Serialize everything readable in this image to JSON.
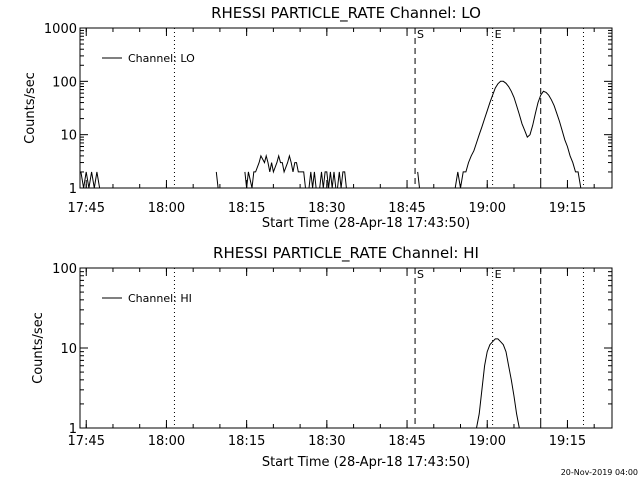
{
  "chart_data": [
    {
      "type": "line",
      "title": "RHESSI PARTICLE_RATE Channel: LO",
      "xlabel": "Start Time (28-Apr-18 17:43:50)",
      "ylabel": "Counts/sec",
      "yscale": "log",
      "ylim": [
        1,
        1000
      ],
      "x_ticks": [
        "17:45",
        "18:00",
        "18:15",
        "18:30",
        "18:45",
        "19:00",
        "19:15"
      ],
      "y_ticks": [
        "1",
        "10",
        "100",
        "1000"
      ],
      "legend": {
        "label": "Channel: LO",
        "position": "top-left"
      },
      "markers": [
        {
          "time": "18:46:30",
          "label": "S",
          "style": "dashed"
        },
        {
          "time": "19:01:00",
          "label": "E",
          "style": "dotted"
        },
        {
          "time": "19:10:00",
          "label": "",
          "style": "dashed"
        },
        {
          "time": "18:01:30",
          "label": "",
          "style": "dotted"
        },
        {
          "time": "19:18:00",
          "label": "",
          "style": "dotted"
        }
      ],
      "series": [
        {
          "name": "Channel: LO",
          "x": [
            "17:44:00",
            "17:44:30",
            "17:45:00",
            "17:45:30",
            "17:46:00",
            "17:46:30",
            "17:47:00",
            "17:47:30",
            "17:48:00",
            "18:09:20",
            "18:09:40",
            "18:10:00",
            "18:14:40",
            "18:15:00",
            "18:15:20",
            "18:16:00",
            "18:16:20",
            "18:16:40",
            "18:17:20",
            "18:17:40",
            "18:18:20",
            "18:18:40",
            "18:19:00",
            "18:19:20",
            "18:19:40",
            "18:20:00",
            "18:20:40",
            "18:21:00",
            "18:21:20",
            "18:21:40",
            "18:22:00",
            "18:22:40",
            "18:23:00",
            "18:23:20",
            "18:23:40",
            "18:24:00",
            "18:24:20",
            "18:24:40",
            "18:25:00",
            "18:25:40",
            "18:26:00",
            "18:26:40",
            "18:27:00",
            "18:27:20",
            "18:27:40",
            "18:28:00",
            "18:28:40",
            "18:29:00",
            "18:29:20",
            "18:29:40",
            "18:30:00",
            "18:30:20",
            "18:30:40",
            "18:31:00",
            "18:31:20",
            "18:31:40",
            "18:32:00",
            "18:32:20",
            "18:32:40",
            "18:33:00",
            "18:33:20",
            "18:33:40",
            "18:34:00",
            "18:47:00",
            "18:47:20",
            "18:47:40",
            "18:54:00",
            "18:54:30",
            "18:55:00",
            "18:55:30",
            "18:56:00",
            "18:56:30",
            "18:57:00",
            "18:57:30",
            "18:58:00",
            "18:58:30",
            "18:59:00",
            "18:59:30",
            "19:00:00",
            "19:00:30",
            "19:01:00",
            "19:01:30",
            "19:02:00",
            "19:02:30",
            "19:03:00",
            "19:03:30",
            "19:04:00",
            "19:04:30",
            "19:05:00",
            "19:05:30",
            "19:06:00",
            "19:06:30",
            "19:07:00",
            "19:07:30",
            "19:08:00",
            "19:08:30",
            "19:09:00",
            "19:09:30",
            "19:10:00",
            "19:10:30",
            "19:11:00",
            "19:11:30",
            "19:12:00",
            "19:12:30",
            "19:13:00",
            "19:13:30",
            "19:14:00",
            "19:14:30",
            "19:15:00",
            "19:15:30",
            "19:16:00",
            "19:16:30",
            "19:17:00",
            "19:17:30",
            "19:18:00"
          ],
          "y": [
            2,
            1,
            2,
            1,
            2,
            1,
            2,
            1,
            1,
            2,
            1,
            1,
            2,
            1,
            2,
            1,
            2,
            2,
            3,
            4,
            3,
            4,
            3,
            2,
            3,
            2,
            3,
            4,
            3,
            3,
            2,
            3,
            4,
            3,
            2,
            3,
            3,
            2,
            2,
            2,
            1,
            1,
            2,
            1,
            2,
            1,
            1,
            2,
            1,
            2,
            2,
            1,
            2,
            1,
            2,
            1,
            1,
            2,
            1,
            2,
            2,
            1,
            1,
            2,
            1,
            1,
            1,
            2,
            1,
            2,
            2,
            3,
            4,
            5,
            7,
            10,
            14,
            20,
            28,
            40,
            55,
            75,
            90,
            100,
            100,
            92,
            80,
            65,
            50,
            35,
            24,
            16,
            12,
            9,
            10,
            15,
            25,
            40,
            55,
            65,
            62,
            55,
            45,
            35,
            25,
            18,
            12,
            8,
            6,
            4,
            3,
            2,
            2,
            1,
            1
          ]
        }
      ]
    },
    {
      "type": "line",
      "title": "RHESSI PARTICLE_RATE Channel: HI",
      "xlabel": "Start Time (28-Apr-18 17:43:50)",
      "ylabel": "Counts/sec",
      "yscale": "log",
      "ylim": [
        1,
        100
      ],
      "x_ticks": [
        "17:45",
        "18:00",
        "18:15",
        "18:30",
        "18:45",
        "19:00",
        "19:15"
      ],
      "y_ticks": [
        "1",
        "10",
        "100"
      ],
      "legend": {
        "label": "Channel: HI",
        "position": "top-left"
      },
      "markers": [
        {
          "time": "18:46:30",
          "label": "S",
          "style": "dashed"
        },
        {
          "time": "19:01:00",
          "label": "E",
          "style": "dotted"
        },
        {
          "time": "19:10:00",
          "label": "",
          "style": "dashed"
        },
        {
          "time": "18:01:30",
          "label": "",
          "style": "dotted"
        },
        {
          "time": "19:18:00",
          "label": "",
          "style": "dotted"
        }
      ],
      "series": [
        {
          "name": "Channel: HI",
          "x": [
            "18:58:00",
            "18:58:30",
            "18:59:00",
            "18:59:30",
            "19:00:00",
            "19:00:30",
            "19:01:00",
            "19:01:30",
            "19:02:00",
            "19:02:30",
            "19:03:00",
            "19:03:30",
            "19:04:00",
            "19:04:30",
            "19:05:00",
            "19:05:30",
            "19:06:00"
          ],
          "y": [
            1,
            1.5,
            3,
            6,
            9,
            11,
            12,
            13,
            13,
            12,
            11,
            9,
            6,
            4,
            2.5,
            1.5,
            1
          ]
        }
      ]
    }
  ],
  "footer": {
    "timestamp": "20-Nov-2019 04:00"
  }
}
